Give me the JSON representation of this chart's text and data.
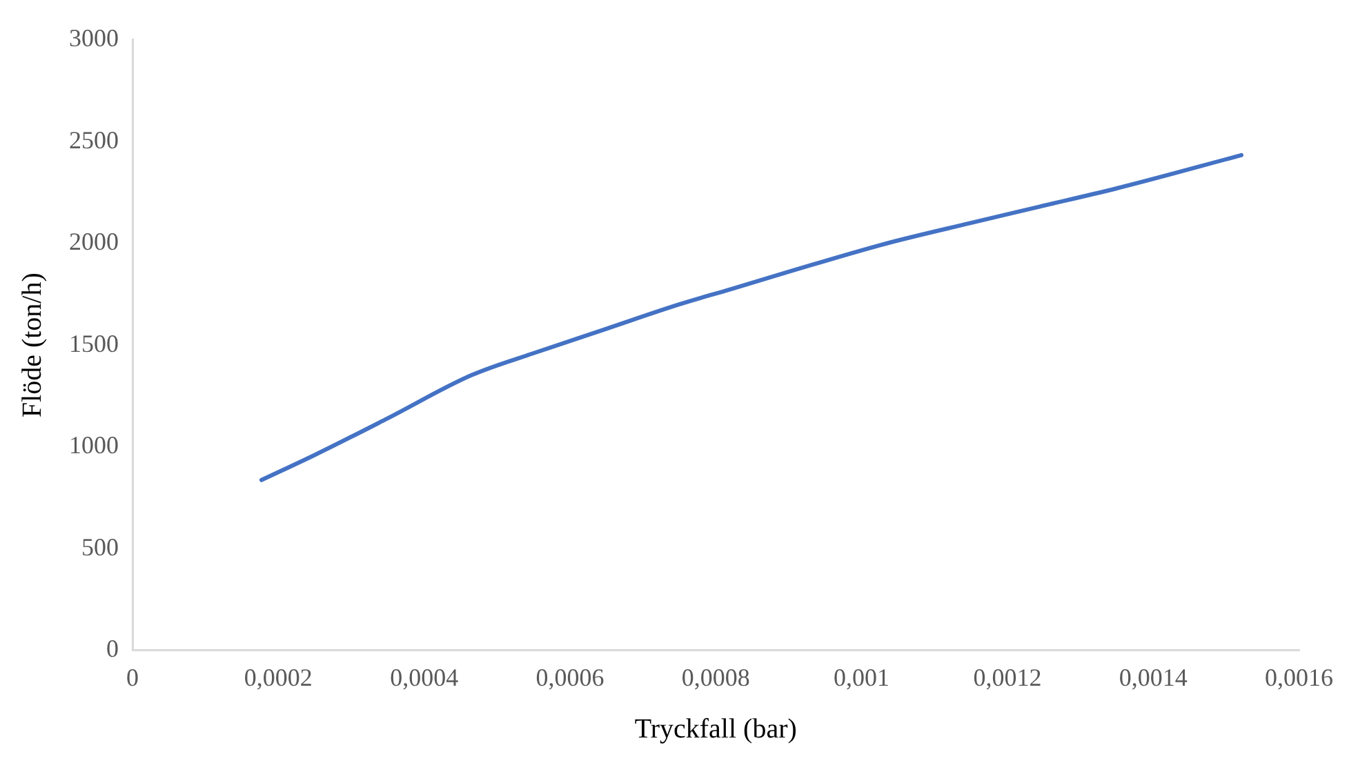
{
  "chart_data": {
    "type": "line",
    "xlabel": "Tryckfall (bar)",
    "ylabel": "Flöde (ton/h)",
    "x": [
      0.000177,
      0.00025,
      0.00035,
      0.000465,
      0.00055,
      0.00065,
      0.00075,
      0.000821,
      0.0009,
      0.001033,
      0.00115,
      0.001244,
      0.00135,
      0.001521
    ],
    "series": [
      {
        "color": "#4472c4",
        "values": [
          837,
          960,
          1140,
          1352,
          1460,
          1580,
          1700,
          1775,
          1860,
          1998,
          2100,
          2180,
          2270,
          2433
        ]
      }
    ],
    "xlim": [
      0,
      0.0016
    ],
    "xticks": [
      0,
      {
        "value": 0.0002,
        "label": "0,0002"
      },
      {
        "value": 0.0004,
        "label": "0,0004"
      },
      {
        "value": 0.0006,
        "label": "0,0006"
      },
      {
        "value": 0.0008,
        "label": "0,0008"
      },
      {
        "value": 0.001,
        "label": "0,001"
      },
      {
        "value": 0.0012,
        "label": "0,0012"
      },
      {
        "value": 0.0014,
        "label": "0,0014"
      },
      {
        "value": 0.0016,
        "label": "0,0016"
      }
    ],
    "ylim": [
      0,
      3000
    ],
    "yticks": [
      0,
      500,
      1000,
      1500,
      2000,
      2500,
      3000
    ],
    "grid": false,
    "legend": false,
    "marker": "none",
    "line_style": "solid"
  }
}
